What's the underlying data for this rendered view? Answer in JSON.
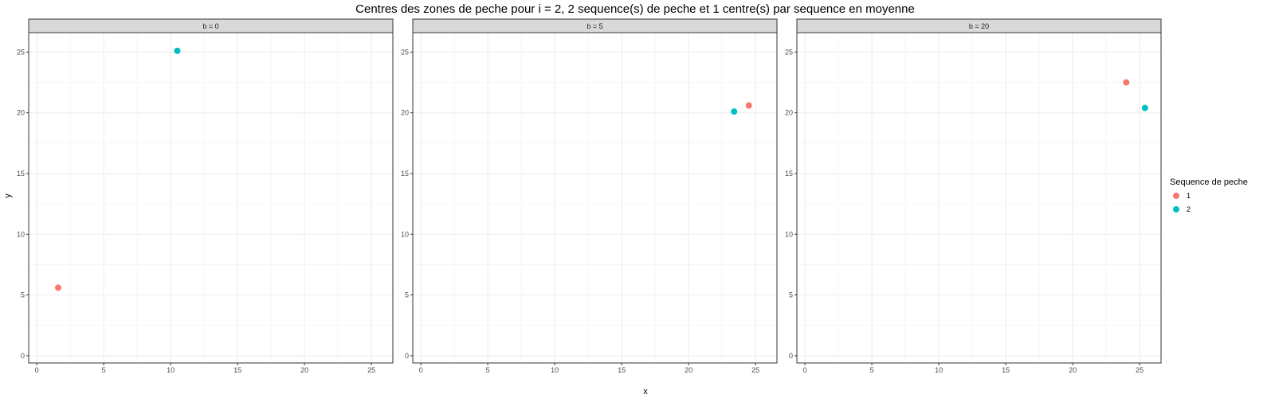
{
  "chart_data": {
    "type": "scatter",
    "title": "Centres des zones de peche pour i = 2, 2 sequence(s) de peche et 1 centre(s) par sequence en moyenne",
    "xlabel": "x",
    "ylabel": "y",
    "xlim": [
      -0.6,
      26.6
    ],
    "ylim": [
      -0.6,
      26.6
    ],
    "x_ticks": [
      0,
      5,
      10,
      15,
      20,
      25
    ],
    "y_ticks": [
      0,
      5,
      10,
      15,
      20,
      25
    ],
    "grid": true,
    "legend": {
      "title": "Sequence de peche",
      "placement": "right",
      "entries": [
        {
          "label": "1",
          "color": "#F8766D"
        },
        {
          "label": "2",
          "color": "#00BFC4"
        }
      ]
    },
    "panels": [
      {
        "label": "b = 0",
        "points": [
          {
            "series": "1",
            "x": 1.6,
            "y": 5.6
          },
          {
            "series": "2",
            "x": 10.5,
            "y": 25.1
          }
        ]
      },
      {
        "label": "b = 5",
        "points": [
          {
            "series": "1",
            "x": 24.5,
            "y": 20.6
          },
          {
            "series": "2",
            "x": 23.4,
            "y": 20.1
          }
        ]
      },
      {
        "label": "b = 20",
        "points": [
          {
            "series": "1",
            "x": 24.0,
            "y": 22.5
          },
          {
            "series": "2",
            "x": 25.4,
            "y": 20.4
          }
        ]
      }
    ]
  }
}
